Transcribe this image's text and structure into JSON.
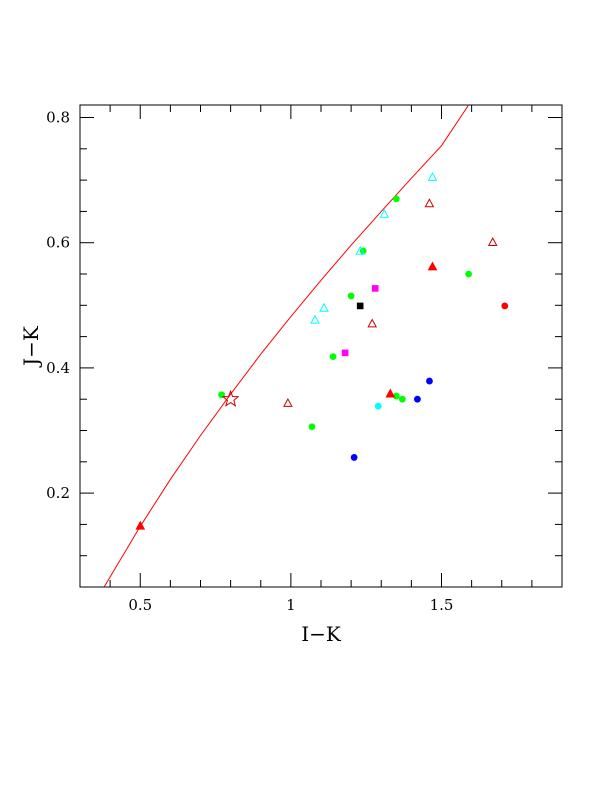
{
  "chart_data": {
    "type": "scatter",
    "title": "",
    "xlabel": "I−K",
    "ylabel": "J−K",
    "xlim": [
      0.3,
      1.9
    ],
    "ylim": [
      0.05,
      0.82
    ],
    "xticks": [
      0.5,
      1,
      1.5
    ],
    "xtick_labels": [
      "0.5",
      "1",
      "1.5"
    ],
    "yticks": [
      0.2,
      0.4,
      0.6,
      0.8
    ],
    "ytick_labels": [
      "0.2",
      "0.4",
      "0.6",
      "0.8"
    ],
    "x_minor_step": 0.1,
    "y_minor_step": 0.05,
    "grid": false,
    "curve": {
      "color": "#ff0000",
      "x": [
        0.38,
        0.5,
        0.6,
        0.7,
        0.8,
        0.9,
        1.0,
        1.1,
        1.2,
        1.3,
        1.4,
        1.5,
        1.59
      ],
      "y": [
        0.05,
        0.147,
        0.222,
        0.292,
        0.358,
        0.422,
        0.482,
        0.54,
        0.596,
        0.65,
        0.703,
        0.755,
        0.82
      ]
    },
    "series": [
      {
        "marker": "circle-filled",
        "color": "#00ff00",
        "x": [
          0.77,
          1.07,
          1.14,
          1.2,
          1.24,
          1.35,
          1.35,
          1.37,
          1.59
        ],
        "y": [
          0.357,
          0.306,
          0.418,
          0.515,
          0.587,
          0.67,
          0.355,
          0.35,
          0.55
        ]
      },
      {
        "marker": "circle-filled",
        "color": "#0000ff",
        "x": [
          1.21,
          1.42,
          1.46
        ],
        "y": [
          0.257,
          0.35,
          0.379
        ]
      },
      {
        "marker": "circle-filled",
        "color": "#00ffff",
        "x": [
          1.29
        ],
        "y": [
          0.339
        ]
      },
      {
        "marker": "circle-filled",
        "color": "#ff0000",
        "x": [
          1.71
        ],
        "y": [
          0.499
        ]
      },
      {
        "marker": "square-filled",
        "color": "#ff00ff",
        "x": [
          1.18,
          1.28
        ],
        "y": [
          0.424,
          0.527
        ]
      },
      {
        "marker": "square-filled",
        "color": "#000000",
        "x": [
          1.23
        ],
        "y": [
          0.499
        ]
      },
      {
        "marker": "triangle-filled",
        "color": "#ff0000",
        "x": [
          0.5,
          1.33,
          1.47
        ],
        "y": [
          0.147,
          0.358,
          0.561
        ]
      },
      {
        "marker": "triangle-open",
        "color": "#00ffff",
        "x": [
          1.08,
          1.11,
          1.23,
          1.31,
          1.47
        ],
        "y": [
          0.476,
          0.495,
          0.586,
          0.645,
          0.704
        ]
      },
      {
        "marker": "triangle-open",
        "color": "#cc0000",
        "x": [
          0.99,
          1.27,
          1.46,
          1.67
        ],
        "y": [
          0.343,
          0.47,
          0.662,
          0.6
        ]
      },
      {
        "marker": "star-open",
        "color": "#cc0000",
        "x": [
          0.8
        ],
        "y": [
          0.35
        ]
      }
    ]
  }
}
